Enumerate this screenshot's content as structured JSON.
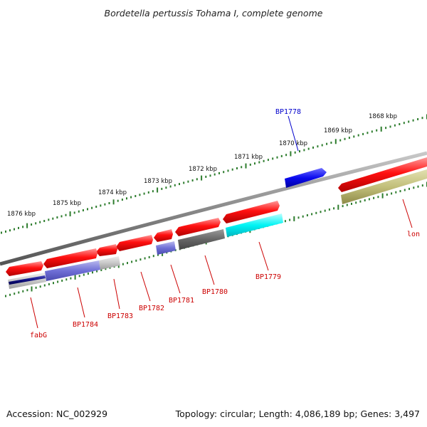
{
  "title": "Bordetella pertussis Tohama I, complete genome",
  "accession": "Accession: NC_002929",
  "summary": "Topology: circular; Length: 4,086,189 bp; Genes: 3,497",
  "colors": {
    "background": "#ffffff",
    "backbone": "#8a8a8a",
    "ticks": "#2e7d2e",
    "label_red": "#cc0000",
    "label_blue": "#0000cc"
  },
  "scale_labels": [
    "1876 kbp",
    "1875 kbp",
    "1874 kbp",
    "1873 kbp",
    "1872 kbp",
    "1871 kbp",
    "1870 kbp",
    "1869 kbp",
    "1868 kbp"
  ],
  "genes": [
    "BP1778",
    "lon",
    "BP1779",
    "BP1780",
    "BP1781",
    "BP1782",
    "BP1783",
    "BP1784",
    "fabG"
  ]
}
